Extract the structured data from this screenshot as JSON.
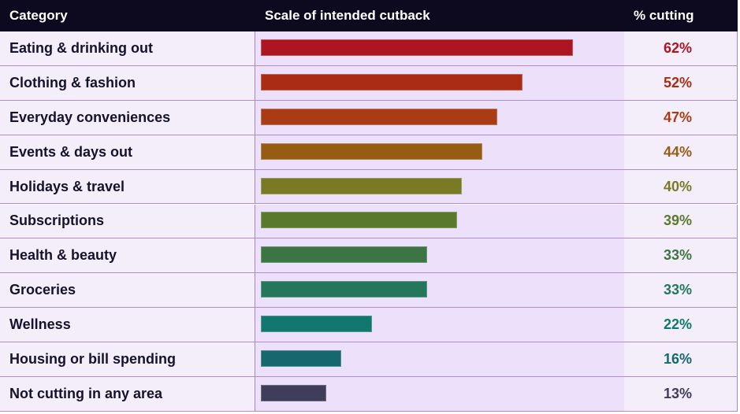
{
  "headers": {
    "category": "Category",
    "scale": "Scale of intended cutback",
    "pct": "% cutting"
  },
  "chart_data": {
    "type": "bar",
    "orientation": "horizontal",
    "categories": [
      "Eating & drinking out",
      "Clothing & fashion",
      "Everyday conveniences",
      "Events & days out",
      "Holidays & travel",
      "Subscriptions",
      "Health & beauty",
      "Groceries",
      "Wellness",
      "Housing or bill spending",
      "Not cutting in any area"
    ],
    "values": [
      62,
      52,
      47,
      44,
      40,
      39,
      33,
      33,
      22,
      16,
      13
    ],
    "value_labels": [
      "62%",
      "52%",
      "47%",
      "44%",
      "40%",
      "39%",
      "33%",
      "33%",
      "22%",
      "16%",
      "13%"
    ],
    "colors": [
      "#ac1622",
      "#aa2c14",
      "#a93c14",
      "#975c14",
      "#7b7a24",
      "#597a2c",
      "#3b7544",
      "#24775a",
      "#12776e",
      "#16686e",
      "#3f3d5a"
    ],
    "xlim": [
      0,
      62
    ],
    "grid": false
  }
}
